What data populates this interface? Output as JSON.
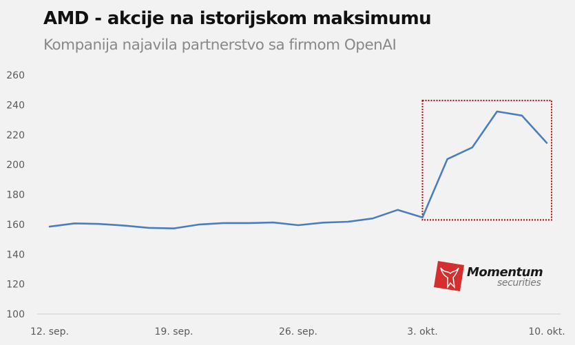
{
  "header": {
    "title": "AMD - akcije na istorijskom maksimumu",
    "subtitle": "Kompanija najavila partnerstvo sa firmom OpenAI"
  },
  "logo": {
    "brand": "Momentum",
    "sub": "securities",
    "color": "#d32f2f"
  },
  "colors": {
    "line": "#4a7ebb",
    "highlight_box": "#c00000",
    "background": "#f2f2f2",
    "axis": "#d9d9d9"
  },
  "chart_data": {
    "type": "line",
    "title": "AMD - akcije na istorijskom maksimumu",
    "subtitle": "Kompanija najavila partnerstvo sa firmom OpenAI",
    "xlabel": "",
    "ylabel": "",
    "ylim": [
      100,
      260
    ],
    "yticks": [
      100,
      120,
      140,
      160,
      180,
      200,
      220,
      240,
      260
    ],
    "xtick_labels": [
      "12. sep.",
      "19. sep.",
      "26. sep.",
      "3. okt.",
      "10. okt."
    ],
    "grid": false,
    "legend": null,
    "series": [
      {
        "name": "AMD",
        "values": [
          158.5,
          160.7,
          160.3,
          159.2,
          157.7,
          157.3,
          159.9,
          160.9,
          160.9,
          161.3,
          159.5,
          161.2,
          161.8,
          164.0,
          169.7,
          164.7,
          203.7,
          211.5,
          235.6,
          232.9,
          214.6
        ]
      }
    ],
    "annotations": [
      {
        "type": "dotted-rectangle",
        "from_index": 15,
        "to_index": 20,
        "y_range": [
          163,
          243
        ],
        "color": "#c00000"
      }
    ]
  }
}
